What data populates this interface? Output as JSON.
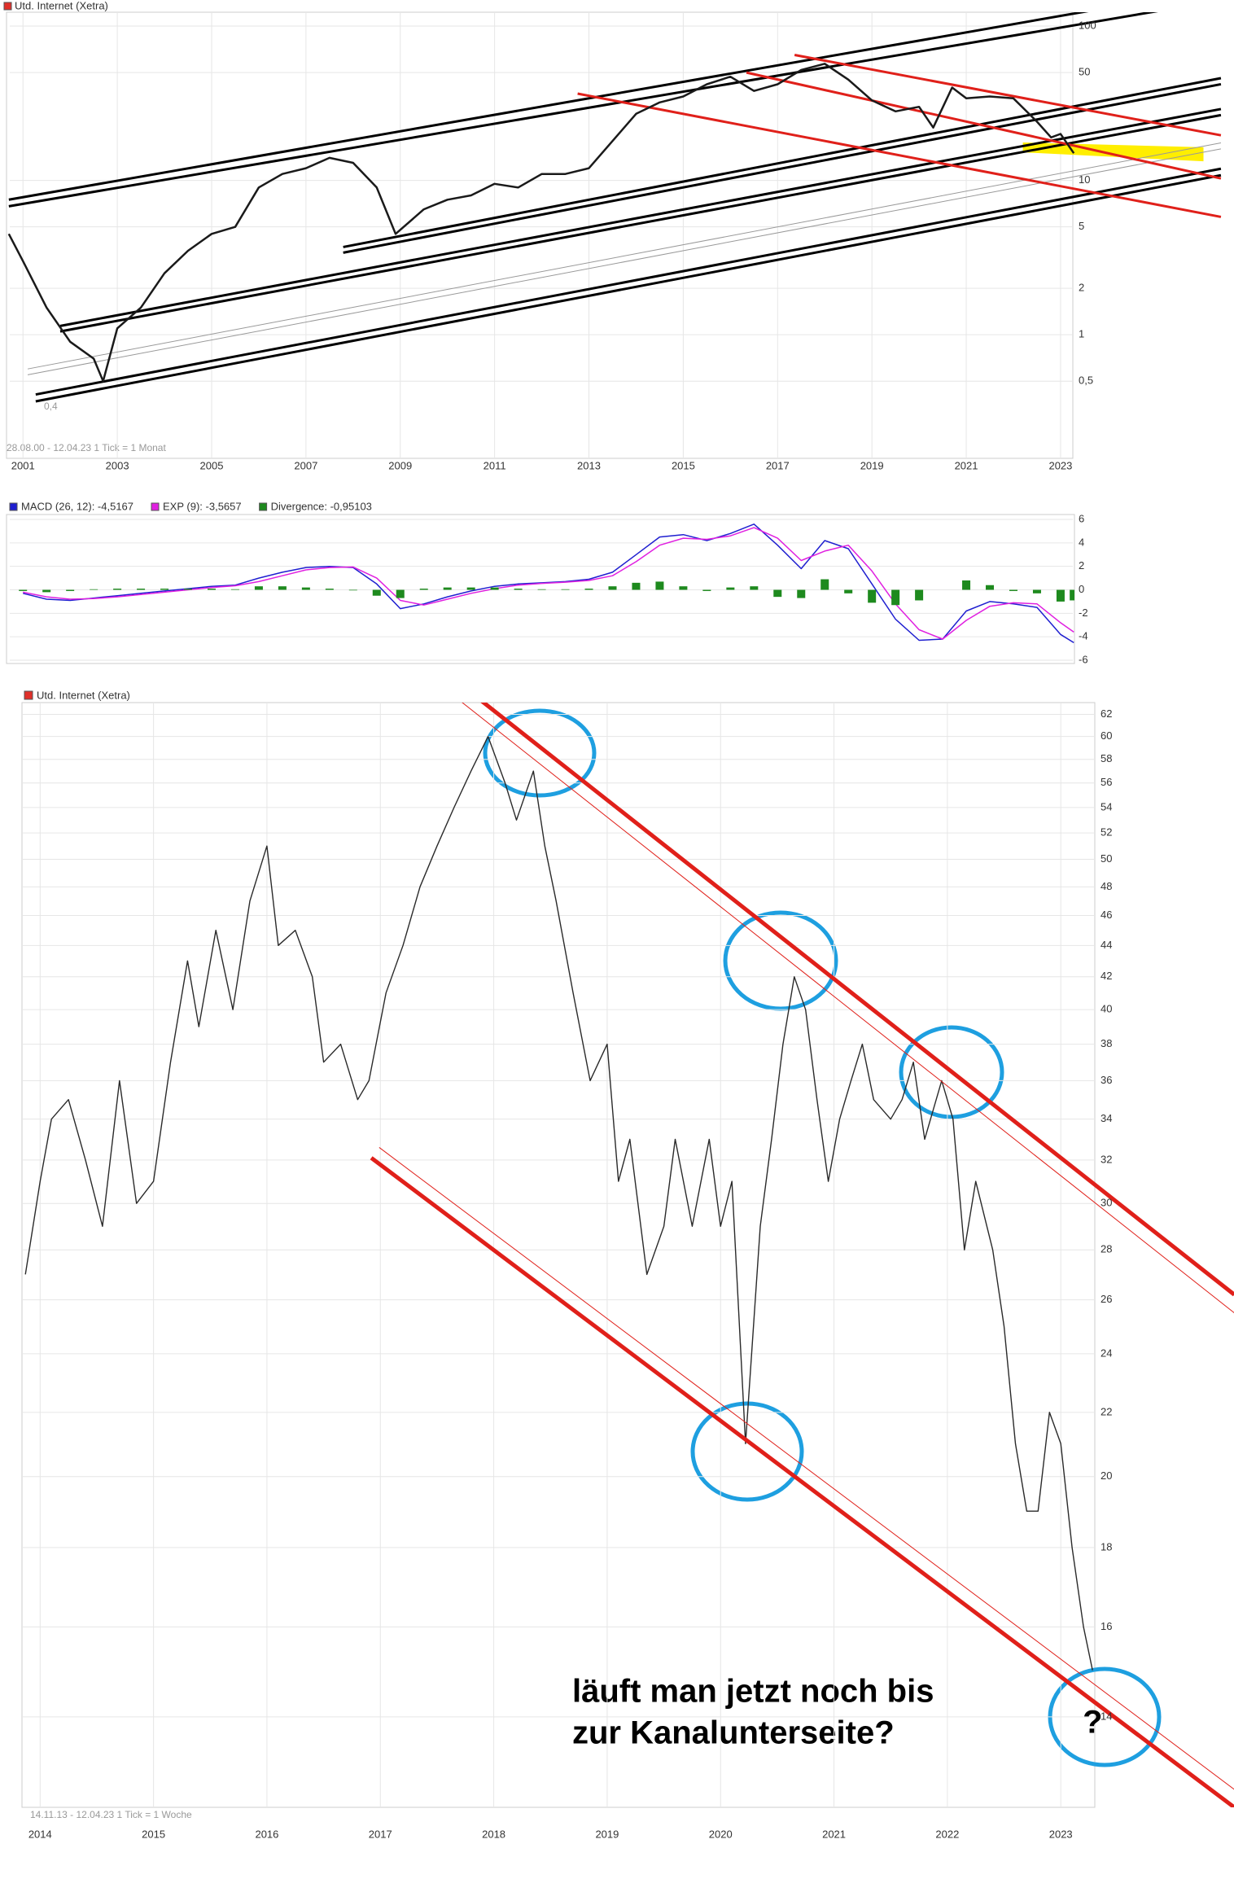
{
  "chart_data": [
    {
      "type": "line",
      "title": "Utd. Internet (Xetra)",
      "note": "28.08.00 - 12.04.23   1 Tick = 1 Monat",
      "log_y": true,
      "grid": true,
      "title_color": "#e0302a",
      "xlim": [
        2000.72,
        2023.26
      ],
      "xticks": [
        2001,
        2003,
        2005,
        2007,
        2009,
        2011,
        2013,
        2015,
        2017,
        2019,
        2021,
        2023
      ],
      "ylim": [
        0.16,
        123
      ],
      "yticks": [
        {
          "value": 0.5,
          "label": "0,5"
        },
        1,
        2,
        5,
        10,
        50,
        100
      ],
      "x": [
        2000.7,
        2001.0,
        2001.5,
        2002.0,
        2002.5,
        2002.7,
        2003.0,
        2003.5,
        2004.0,
        2004.5,
        2005.0,
        2005.5,
        2006.0,
        2006.5,
        2007.0,
        2007.5,
        2008.0,
        2008.5,
        2008.9,
        2009.5,
        2010.0,
        2010.5,
        2011.0,
        2011.5,
        2012.0,
        2012.5,
        2013.0,
        2013.5,
        2014.0,
        2014.5,
        2015.0,
        2015.5,
        2016.0,
        2016.5,
        2017.0,
        2017.5,
        2018.0,
        2018.5,
        2019.0,
        2019.5,
        2020.0,
        2020.3,
        2020.7,
        2021.0,
        2021.5,
        2022.0,
        2022.5,
        2022.8,
        2023.0,
        2023.28
      ],
      "series": [
        {
          "color": "#1a1a1a",
          "values": [
            4.5,
            3,
            1.5,
            0.9,
            0.7,
            0.5,
            1.1,
            1.5,
            2.5,
            3.5,
            4.5,
            5,
            9,
            11,
            12,
            14,
            13,
            9,
            4.5,
            6.5,
            7.5,
            8,
            9.5,
            9,
            11,
            11,
            12,
            18,
            27,
            32,
            35,
            42,
            47,
            38,
            42,
            52,
            57,
            45,
            33,
            28,
            30,
            22,
            40,
            34,
            35,
            34,
            24,
            19,
            20,
            15
          ]
        }
      ],
      "annotations": [
        "0,4"
      ],
      "trendlines": [
        {
          "color": "#000000",
          "style": "thick",
          "x": [
            2000.7,
            2024.5
          ],
          "y": [
            7.5,
            140
          ]
        },
        {
          "color": "#000000",
          "style": "thick",
          "x": [
            2000.7,
            2026
          ],
          "y": [
            6.8,
            140
          ]
        },
        {
          "color": "#000000",
          "style": "thick",
          "x": [
            2007.79,
            2026.4
          ],
          "y": [
            3.7,
            46
          ]
        },
        {
          "color": "#000000",
          "style": "thick",
          "x": [
            2007.79,
            2026.4
          ],
          "y": [
            3.4,
            42
          ]
        },
        {
          "color": "#000000",
          "style": "thick",
          "x": [
            2001.79,
            2026.4
          ],
          "y": [
            1.14,
            29
          ]
        },
        {
          "color": "#000000",
          "style": "thick",
          "x": [
            2001.79,
            2026.4
          ],
          "y": [
            1.05,
            26.5
          ]
        },
        {
          "color": "#000000",
          "style": "thick",
          "x": [
            2001.27,
            2026.4
          ],
          "y": [
            0.41,
            11.9
          ]
        },
        {
          "color": "#000000",
          "style": "thick",
          "x": [
            2001.27,
            2026.4
          ],
          "y": [
            0.37,
            10.8
          ]
        },
        {
          "color": "#999999",
          "style": "thin",
          "x": [
            2001.1,
            2026.4
          ],
          "y": [
            0.55,
            16
          ]
        },
        {
          "color": "#999999",
          "style": "thin",
          "x": [
            2001.1,
            2026.4
          ],
          "y": [
            0.6,
            17.5
          ]
        },
        {
          "color": "#e0201a",
          "style": "thick",
          "x": [
            2012.76,
            2026.4
          ],
          "y": [
            36.5,
            5.8
          ]
        },
        {
          "color": "#e0201a",
          "style": "thick",
          "x": [
            2016.34,
            2026.4
          ],
          "y": [
            50,
            10.3
          ]
        },
        {
          "color": "#e0201a",
          "style": "thick",
          "x": [
            2017.36,
            2026.4
          ],
          "y": [
            65,
            19.6
          ]
        }
      ],
      "areas": [
        {
          "color": "#ffee00",
          "x": [
            2022.2,
            2026.03,
            2026.03,
            2022.2
          ],
          "y": [
            17.6,
            16.4,
            13.3,
            15.2
          ]
        }
      ]
    },
    {
      "type": "combo",
      "grid": true,
      "xlim": [
        2000.72,
        2023.26
      ],
      "ylim": [
        -6,
        6
      ],
      "yticks": [
        6,
        4,
        2,
        0,
        -2,
        -4,
        -6
      ],
      "x": [
        2001,
        2001.5,
        2002,
        2002.5,
        2003,
        2003.5,
        2004,
        2004.5,
        2005,
        2005.5,
        2006,
        2006.5,
        2007,
        2007.5,
        2008,
        2008.5,
        2009,
        2009.5,
        2010,
        2010.5,
        2011,
        2011.5,
        2012,
        2012.5,
        2013,
        2013.5,
        2014,
        2014.5,
        2015,
        2015.5,
        2016,
        2016.5,
        2017,
        2017.5,
        2018,
        2018.5,
        2019,
        2019.5,
        2020,
        2020.5,
        2021,
        2021.5,
        2022,
        2022.5,
        2023,
        2023.28
      ],
      "series": [
        {
          "name": "MACD (26, 12): -4,5167",
          "kind": "line",
          "color": "#1f1fd0",
          "values": [
            -0.3,
            -0.8,
            -0.9,
            -0.7,
            -0.5,
            -0.3,
            -0.1,
            0.1,
            0.3,
            0.4,
            1.0,
            1.5,
            1.9,
            2.0,
            1.9,
            0.5,
            -1.6,
            -1.2,
            -0.6,
            -0.1,
            0.3,
            0.5,
            0.6,
            0.7,
            0.9,
            1.5,
            3.0,
            4.5,
            4.7,
            4.2,
            4.8,
            5.6,
            3.8,
            1.8,
            4.2,
            3.5,
            0.5,
            -2.5,
            -4.3,
            -4.2,
            -1.8,
            -1.0,
            -1.2,
            -1.5,
            -3.8,
            -4.5
          ]
        },
        {
          "name": "EXP (9): -3,5657",
          "kind": "line",
          "color": "#e020e0",
          "values": [
            -0.2,
            -0.6,
            -0.8,
            -0.75,
            -0.6,
            -0.4,
            -0.2,
            0,
            0.2,
            0.35,
            0.7,
            1.2,
            1.7,
            1.9,
            1.95,
            1.0,
            -0.9,
            -1.3,
            -0.8,
            -0.3,
            0.1,
            0.4,
            0.55,
            0.65,
            0.8,
            1.2,
            2.4,
            3.8,
            4.4,
            4.3,
            4.6,
            5.3,
            4.4,
            2.5,
            3.3,
            3.8,
            1.6,
            -1.2,
            -3.4,
            -4.2,
            -2.6,
            -1.4,
            -1.1,
            -1.2,
            -2.8,
            -3.6
          ]
        },
        {
          "name": "Divergence: -0,95103",
          "kind": "bar",
          "color": "#1e8a1e",
          "values": [
            -0.1,
            -0.2,
            -0.1,
            0.05,
            0.1,
            0.1,
            0.1,
            0.1,
            0.1,
            0.05,
            0.3,
            0.3,
            0.2,
            0.1,
            -0.05,
            -0.5,
            -0.7,
            0.1,
            0.2,
            0.2,
            0.2,
            0.1,
            0.05,
            0.05,
            0.1,
            0.3,
            0.6,
            0.7,
            0.3,
            -0.1,
            0.2,
            0.3,
            -0.6,
            -0.7,
            0.9,
            -0.3,
            -1.1,
            -1.3,
            -0.9,
            0,
            0.8,
            0.4,
            -0.1,
            -0.3,
            -1.0,
            -0.9
          ]
        }
      ]
    },
    {
      "type": "line",
      "title": "Utd. Internet (Xetra)",
      "note": "14.11.13 - 12.04.23   1 Tick = 1 Woche",
      "log_y": true,
      "grid": true,
      "title_color": "#e0302a",
      "xlim": [
        2013.84,
        2023.3
      ],
      "xticks": [
        2014,
        2015,
        2016,
        2017,
        2018,
        2019,
        2020,
        2021,
        2022,
        2023
      ],
      "ylim": [
        12.24,
        63.1
      ],
      "yticks": [
        14,
        16,
        18,
        20,
        22,
        24,
        26,
        28,
        30,
        32,
        34,
        36,
        38,
        40,
        42,
        44,
        46,
        48,
        50,
        52,
        54,
        56,
        58,
        60,
        62
      ],
      "x": [
        2013.87,
        2014.0,
        2014.1,
        2014.25,
        2014.4,
        2014.55,
        2014.7,
        2014.85,
        2015.0,
        2015.15,
        2015.3,
        2015.4,
        2015.55,
        2015.7,
        2015.85,
        2016.0,
        2016.1,
        2016.25,
        2016.4,
        2016.5,
        2016.65,
        2016.8,
        2016.9,
        2017.05,
        2017.2,
        2017.35,
        2017.5,
        2017.65,
        2017.8,
        2017.95,
        2018.1,
        2018.2,
        2018.35,
        2018.45,
        2018.55,
        2018.7,
        2018.85,
        2019.0,
        2019.1,
        2019.2,
        2019.35,
        2019.5,
        2019.6,
        2019.75,
        2019.9,
        2020.0,
        2020.1,
        2020.22,
        2020.35,
        2020.45,
        2020.55,
        2020.65,
        2020.75,
        2020.85,
        2020.95,
        2021.05,
        2021.15,
        2021.25,
        2021.35,
        2021.5,
        2021.6,
        2021.7,
        2021.8,
        2021.95,
        2022.05,
        2022.15,
        2022.25,
        2022.4,
        2022.5,
        2022.6,
        2022.7,
        2022.8,
        2022.9,
        2023.0,
        2023.1,
        2023.2,
        2023.28
      ],
      "series": [
        {
          "color": "#2a2a2a",
          "values": [
            27,
            31,
            34,
            35,
            32,
            29,
            36,
            30,
            31,
            37,
            43,
            39,
            45,
            40,
            47,
            51,
            44,
            45,
            42,
            37,
            38,
            35,
            36,
            41,
            44,
            48,
            51,
            54,
            57,
            60,
            56,
            53,
            57,
            51,
            47,
            41,
            36,
            38,
            31,
            33,
            27,
            29,
            33,
            29,
            33,
            29,
            31,
            21,
            29,
            33,
            38,
            42,
            40,
            35,
            31,
            34,
            36,
            38,
            35,
            34,
            35,
            37,
            33,
            36,
            34,
            28,
            31,
            28,
            25,
            21,
            19,
            19,
            22,
            21,
            18,
            16,
            15
          ]
        }
      ],
      "annotations": [
        "läuft man jetzt noch bis",
        "zur Kanalunterseite?",
        "?"
      ],
      "trendlines": [
        {
          "color": "#e0201a",
          "style": "thick",
          "x": [
            2017.63,
            2024.53
          ],
          "y": [
            65.5,
            26.2
          ]
        },
        {
          "color": "#e0201a",
          "style": "thin",
          "x": [
            2017.5,
            2024.53
          ],
          "y": [
            65.0,
            25.5
          ]
        },
        {
          "color": "#e0201a",
          "style": "thick",
          "x": [
            2016.92,
            2024.53
          ],
          "y": [
            32.1,
            12.24
          ]
        },
        {
          "color": "#e0201a",
          "style": "thin",
          "x": [
            2016.99,
            2024.53
          ],
          "y": [
            32.6,
            12.57
          ]
        }
      ]
    }
  ]
}
